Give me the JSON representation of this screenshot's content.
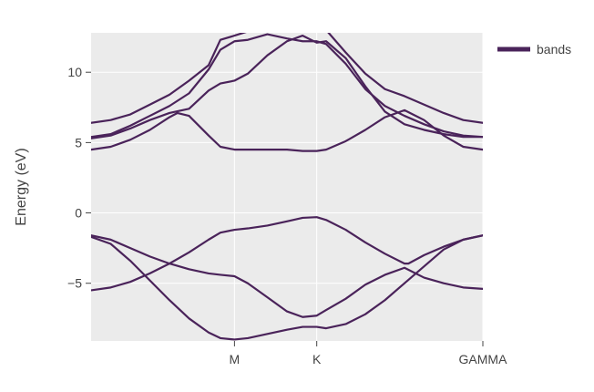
{
  "chart_data": {
    "type": "line",
    "title": "",
    "xlabel": "",
    "ylabel": "Energy (eV)",
    "xlim": [
      0,
      1.0
    ],
    "ylim": [
      -9.1,
      12.8
    ],
    "grid": true,
    "legend_position": "top-right",
    "x_ticks": [
      {
        "value": 0.366,
        "label": "M"
      },
      {
        "value": 0.576,
        "label": "K"
      },
      {
        "value": 1.0,
        "label": "GAMMA"
      }
    ],
    "y_ticks": [
      {
        "value": 10,
        "label": "10"
      },
      {
        "value": 5,
        "label": "5"
      },
      {
        "value": 0,
        "label": "0"
      },
      {
        "value": -5,
        "label": "−5"
      }
    ],
    "legend": [
      {
        "name": "bands",
        "color": "#4a235a"
      }
    ],
    "series_color": "#4a235a",
    "series": [
      {
        "x": [
          0,
          0.05,
          0.1,
          0.15,
          0.2,
          0.25,
          0.3,
          0.33,
          0.366,
          0.4,
          0.45,
          0.5,
          0.54,
          0.576,
          0.6,
          0.65,
          0.7,
          0.75,
          0.8,
          0.85,
          0.9,
          0.95,
          1.0
        ],
        "y": [
          -1.7,
          -2.2,
          -3.4,
          -4.8,
          -6.2,
          -7.5,
          -8.5,
          -8.9,
          -9.0,
          -8.9,
          -8.6,
          -8.3,
          -8.1,
          -8.1,
          -8.2,
          -7.9,
          -7.2,
          -6.2,
          -5.0,
          -3.8,
          -2.6,
          -1.9,
          -1.6
        ]
      },
      {
        "x": [
          0,
          0.05,
          0.1,
          0.15,
          0.2,
          0.25,
          0.3,
          0.33,
          0.366,
          0.4,
          0.45,
          0.5,
          0.54,
          0.576,
          0.6,
          0.65,
          0.7,
          0.75,
          0.8,
          0.85,
          0.9,
          0.95,
          1.0
        ],
        "y": [
          -1.6,
          -1.9,
          -2.5,
          -3.1,
          -3.6,
          -4.0,
          -4.3,
          -4.4,
          -4.5,
          -5.0,
          -6.0,
          -7.0,
          -7.4,
          -7.3,
          -6.9,
          -6.1,
          -5.1,
          -4.4,
          -3.9,
          -4.6,
          -5.0,
          -5.3,
          -5.4
        ]
      },
      {
        "x": [
          0,
          0.05,
          0.1,
          0.15,
          0.2,
          0.25,
          0.3,
          0.33,
          0.366,
          0.4,
          0.45,
          0.5,
          0.54,
          0.576,
          0.6,
          0.65,
          0.7,
          0.75,
          0.8,
          0.81,
          0.85,
          0.9,
          0.95,
          1.0
        ],
        "y": [
          -5.5,
          -5.3,
          -4.9,
          -4.3,
          -3.6,
          -2.8,
          -1.9,
          -1.4,
          -1.2,
          -1.1,
          -0.9,
          -0.6,
          -0.35,
          -0.3,
          -0.5,
          -1.2,
          -2.1,
          -2.9,
          -3.6,
          -3.6,
          -3.0,
          -2.4,
          -1.9,
          -1.6
        ]
      },
      {
        "x": [
          0,
          0.05,
          0.1,
          0.15,
          0.2,
          0.22,
          0.25,
          0.3,
          0.33,
          0.366,
          0.4,
          0.45,
          0.5,
          0.54,
          0.576,
          0.6,
          0.65,
          0.7,
          0.75,
          0.8,
          0.85,
          0.9,
          0.95,
          1.0
        ],
        "y": [
          4.5,
          4.7,
          5.2,
          5.9,
          6.8,
          7.1,
          6.9,
          5.5,
          4.7,
          4.5,
          4.5,
          4.5,
          4.5,
          4.4,
          4.4,
          4.5,
          5.1,
          5.9,
          6.8,
          7.3,
          6.6,
          5.5,
          4.7,
          4.5
        ]
      },
      {
        "x": [
          0,
          0.05,
          0.1,
          0.15,
          0.2,
          0.25,
          0.3,
          0.33,
          0.366,
          0.4,
          0.45,
          0.5,
          0.54,
          0.576,
          0.6,
          0.65,
          0.7,
          0.75,
          0.8,
          0.85,
          0.9,
          0.95,
          1.0
        ],
        "y": [
          5.3,
          5.5,
          6.0,
          6.6,
          7.1,
          7.4,
          8.7,
          9.2,
          9.4,
          9.9,
          11.2,
          12.2,
          12.6,
          12.1,
          12.2,
          11.0,
          9.0,
          7.2,
          6.3,
          5.9,
          5.6,
          5.4,
          5.4
        ]
      },
      {
        "x": [
          0,
          0.05,
          0.1,
          0.15,
          0.2,
          0.25,
          0.3,
          0.33,
          0.366,
          0.4,
          0.45,
          0.5,
          0.54,
          0.576,
          0.6,
          0.65,
          0.7,
          0.75,
          0.8,
          0.85,
          0.9,
          0.95,
          1.0
        ],
        "y": [
          5.4,
          5.6,
          6.2,
          6.9,
          7.6,
          8.5,
          10.2,
          11.6,
          12.2,
          12.3,
          12.7,
          12.4,
          12.2,
          12.2,
          12.0,
          10.6,
          8.8,
          7.6,
          6.9,
          6.3,
          5.8,
          5.5,
          5.4
        ]
      },
      {
        "x": [
          0,
          0.05,
          0.1,
          0.15,
          0.2,
          0.25,
          0.3,
          0.33,
          0.366,
          0.4,
          0.45,
          0.5,
          0.54,
          0.576,
          0.6,
          0.65,
          0.7,
          0.75,
          0.8,
          0.85,
          0.9,
          0.95,
          1.0
        ],
        "y": [
          6.4,
          6.6,
          7.0,
          7.7,
          8.4,
          9.4,
          10.5,
          12.3,
          12.6,
          12.9,
          12.9,
          13.2,
          13.8,
          13.6,
          13.0,
          11.4,
          9.9,
          8.8,
          8.3,
          7.7,
          7.1,
          6.6,
          6.4
        ]
      }
    ]
  }
}
